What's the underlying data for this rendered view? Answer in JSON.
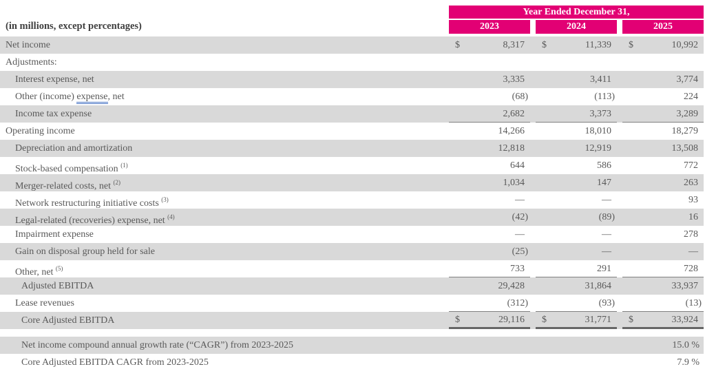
{
  "colors": {
    "accent_magenta": "#E20074",
    "header_text": "#FFFFFF",
    "row_shade": "#D9D9D9",
    "body_text": "#595959",
    "note_text": "#3F3F3F",
    "rule_thin": "#7F7F7F",
    "rule_thick": "#666666",
    "underline_blue": "#4472C4"
  },
  "table": {
    "unit_note": "(in millions, except percentages)",
    "header": {
      "span_label": "Year Ended December 31,",
      "years": [
        "2023",
        "2024",
        "2025"
      ]
    },
    "rows": [
      {
        "label": "Net income",
        "indent": 0,
        "shaded": true,
        "dollar": true,
        "values": [
          "8,317",
          "11,339",
          "10,992"
        ]
      },
      {
        "label": "Adjustments:",
        "indent": 0,
        "shaded": false,
        "values": [
          "",
          "",
          ""
        ]
      },
      {
        "label": "Interest expense, net",
        "indent": 1,
        "shaded": true,
        "values": [
          "3,335",
          "3,411",
          "3,774"
        ]
      },
      {
        "label": "Other (income) expense, net",
        "underline_word": "expense",
        "indent": 1,
        "shaded": false,
        "values": [
          "(68)",
          "(113)",
          "224"
        ]
      },
      {
        "label": "Income tax expense",
        "indent": 1,
        "shaded": true,
        "rule": "thin",
        "values": [
          "2,682",
          "3,373",
          "3,289"
        ]
      },
      {
        "label": "Operating income",
        "indent": 0,
        "shaded": false,
        "values": [
          "14,266",
          "18,010",
          "18,279"
        ]
      },
      {
        "label": "Depreciation and amortization",
        "indent": 1,
        "shaded": true,
        "values": [
          "12,818",
          "12,919",
          "13,508"
        ]
      },
      {
        "label": "Stock-based compensation",
        "sup": "(1)",
        "indent": 1,
        "shaded": false,
        "values": [
          "644",
          "586",
          "772"
        ]
      },
      {
        "label": "Merger-related costs, net",
        "sup": "(2)",
        "indent": 1,
        "shaded": true,
        "values": [
          "1,034",
          "147",
          "263"
        ]
      },
      {
        "label": "Network restructuring initiative costs",
        "sup": "(3)",
        "indent": 1,
        "shaded": false,
        "values": [
          "—",
          "—",
          "93"
        ]
      },
      {
        "label": "Legal-related (recoveries) expense, net",
        "sup": "(4)",
        "underline_word": "expense",
        "indent": 1,
        "shaded": true,
        "values": [
          "(42)",
          "(89)",
          "16"
        ]
      },
      {
        "label": "Impairment expense",
        "indent": 1,
        "shaded": false,
        "values": [
          "—",
          "—",
          "278"
        ]
      },
      {
        "label": "Gain on disposal group held for sale",
        "indent": 1,
        "shaded": true,
        "values": [
          "(25)",
          "—",
          "—"
        ]
      },
      {
        "label": "Other, net",
        "sup": "(5)",
        "indent": 1,
        "shaded": false,
        "rule": "thin",
        "values": [
          "733",
          "291",
          "728"
        ]
      },
      {
        "label": "Adjusted EBITDA",
        "indent": 2,
        "shaded": true,
        "values": [
          "29,428",
          "31,864",
          "33,937"
        ]
      },
      {
        "label": "Lease revenues",
        "indent": 1,
        "shaded": false,
        "rule": "thin",
        "values": [
          "(312)",
          "(93)",
          "(13)"
        ]
      },
      {
        "label": "Core Adjusted EBITDA",
        "indent": 2,
        "shaded": true,
        "dollar": true,
        "rule": "thick",
        "values": [
          "29,116",
          "31,771",
          "33,924"
        ]
      }
    ],
    "cagr_rows": [
      {
        "label": "Net income compound annual growth rate (“CAGR”) from 2023-2025",
        "value": "15.0 %",
        "shaded": true
      },
      {
        "label": "Core Adjusted EBITDA CAGR from 2023-2025",
        "value": "7.9 %",
        "shaded": false
      }
    ]
  }
}
